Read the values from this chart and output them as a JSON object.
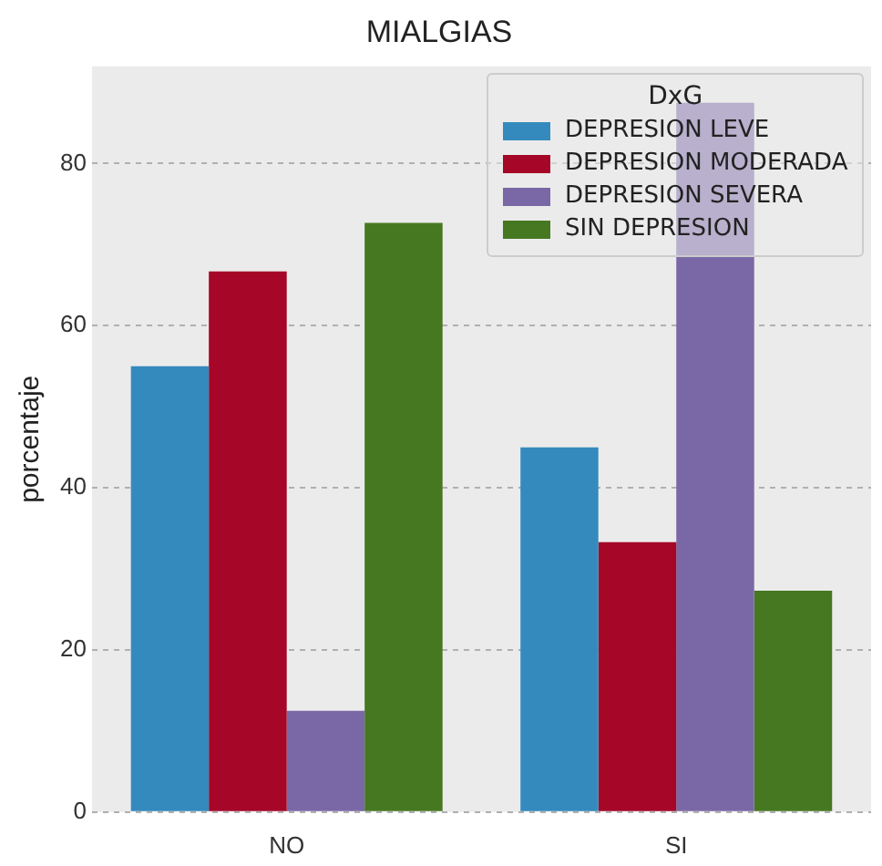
{
  "chart_data": {
    "type": "bar",
    "title": "MIALGIAS",
    "ylabel": "porcentaje",
    "legend_title": "DxG",
    "categories": [
      "NO",
      "SI"
    ],
    "series": [
      {
        "name": "DEPRESION LEVE",
        "color": "#348abd",
        "values": [
          55,
          45
        ]
      },
      {
        "name": "DEPRESION MODERADA",
        "color": "#a60628",
        "values": [
          66.7,
          33.3
        ]
      },
      {
        "name": "DEPRESION SEVERA",
        "color": "#7a68a6",
        "values": [
          12.5,
          87.5
        ]
      },
      {
        "name": "SIN DEPRESION",
        "color": "#467821",
        "values": [
          72.7,
          27.3
        ]
      }
    ],
    "ylim": [
      0,
      92
    ],
    "yticks": [
      0,
      20,
      40,
      60,
      80
    ],
    "grid": "y",
    "legend": "top right"
  }
}
